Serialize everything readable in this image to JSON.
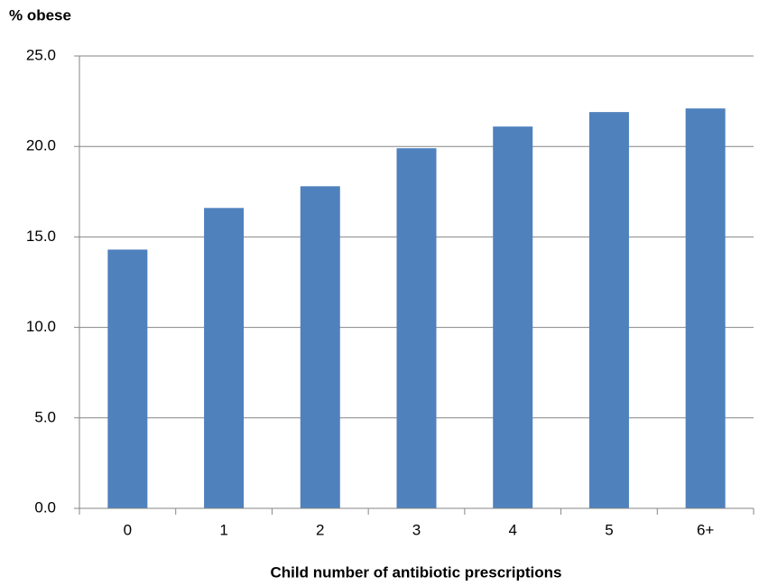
{
  "chart_data": {
    "type": "bar",
    "title": "% obese",
    "x_label": "Child number of antibiotic prescriptions",
    "categories": [
      "0",
      "1",
      "2",
      "3",
      "4",
      "5",
      "6+"
    ],
    "values": [
      14.3,
      16.6,
      17.8,
      19.9,
      21.1,
      21.9,
      22.1
    ],
    "color": "#4f81bd",
    "ylim": [
      0,
      25
    ],
    "yticks": [
      {
        "value": 0,
        "label": "0.0"
      },
      {
        "value": 5,
        "label": "5.0"
      },
      {
        "value": 10,
        "label": "10.0"
      },
      {
        "value": 15,
        "label": "15.0"
      },
      {
        "value": 20,
        "label": "20.0"
      },
      {
        "value": 25,
        "label": "25.0"
      }
    ],
    "grid": true
  }
}
